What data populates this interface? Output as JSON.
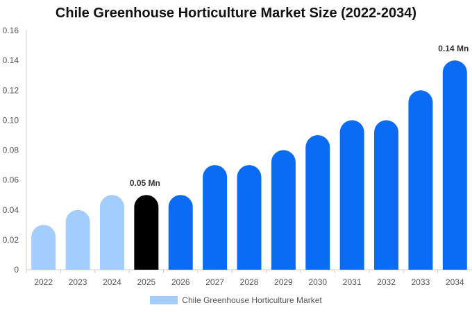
{
  "chart_data": {
    "type": "bar",
    "title": "Chile Greenhouse Horticulture Market Size (2022-2034)",
    "categories": [
      "2022",
      "2023",
      "2024",
      "2025",
      "2026",
      "2027",
      "2028",
      "2029",
      "2030",
      "2031",
      "2032",
      "2033",
      "2034"
    ],
    "series": [
      {
        "name": "Chile Greenhouse Horticulture Market",
        "values": [
          0.03,
          0.04,
          0.05,
          0.05,
          0.05,
          0.07,
          0.07,
          0.08,
          0.09,
          0.1,
          0.1,
          0.12,
          0.14
        ]
      }
    ],
    "ylim": [
      0,
      0.16
    ],
    "yticks": [
      "0",
      "0.02",
      "0.04",
      "0.06",
      "0.08",
      "0.10",
      "0.12",
      "0.14",
      "0.16"
    ],
    "data_labels": [
      {
        "category": "2025",
        "text": "0.05 Mn"
      },
      {
        "category": "2034",
        "text": "0.14 Mn"
      }
    ],
    "bar_colors": {
      "historic": "#a3cdfc",
      "current": "#000000",
      "forecast": "#0a6cf5"
    },
    "historic_categories": [
      "2022",
      "2023",
      "2024"
    ],
    "current_category": "2025",
    "legend_position": "bottom",
    "legend_color": "#a3cdfc",
    "grid": false
  }
}
